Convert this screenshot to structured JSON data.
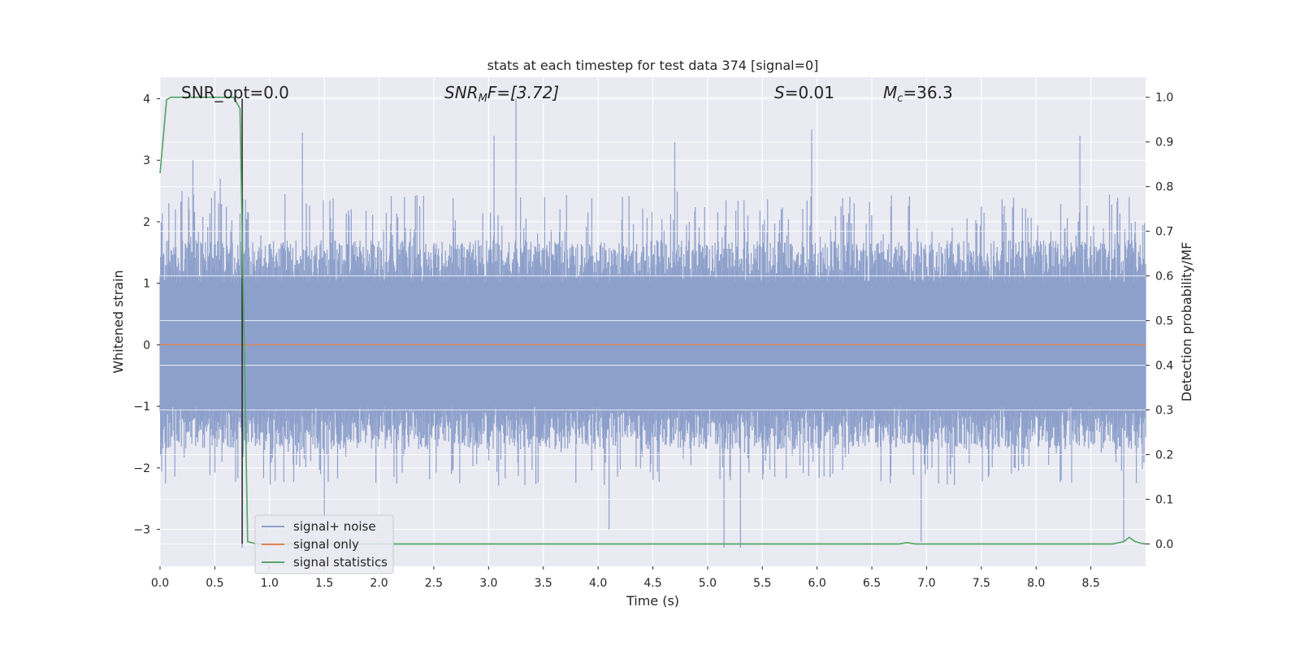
{
  "chart_data": {
    "type": "line",
    "title": "stats at each timestep for test data 374 [signal=0]",
    "xlabel": "Time (s)",
    "ylabel_left": "Whitened strain",
    "ylabel_right": "Detection probability/MF",
    "xlim": [
      0.0,
      9.0
    ],
    "ylim_left": [
      -3.6,
      4.35
    ],
    "ylim_right": [
      -0.05,
      1.045
    ],
    "x_ticks": [
      "0.0",
      "0.5",
      "1.0",
      "1.5",
      "2.0",
      "2.5",
      "3.0",
      "3.5",
      "4.0",
      "4.5",
      "5.0",
      "5.5",
      "6.0",
      "6.5",
      "7.0",
      "7.5",
      "8.0",
      "8.5"
    ],
    "x_tick_values": [
      0,
      0.5,
      1,
      1.5,
      2,
      2.5,
      3,
      3.5,
      4,
      4.5,
      5,
      5.5,
      6,
      6.5,
      7,
      7.5,
      8,
      8.5
    ],
    "y_left_ticks": [
      "−3",
      "−2",
      "−1",
      "0",
      "1",
      "2",
      "3",
      "4"
    ],
    "y_left_tick_values": [
      -3,
      -2,
      -1,
      0,
      1,
      2,
      3,
      4
    ],
    "y_right_ticks": [
      "0.0",
      "0.1",
      "0.2",
      "0.3",
      "0.4",
      "0.5",
      "0.6",
      "0.7",
      "0.8",
      "0.9",
      "1.0"
    ],
    "y_right_tick_values": [
      0,
      0.1,
      0.2,
      0.3,
      0.4,
      0.5,
      0.6,
      0.7,
      0.8,
      0.9,
      1.0
    ],
    "grid": true,
    "legend_position": "lower-left",
    "annotations": {
      "snr_opt": "SNR_opt=0.0",
      "snr_mf_italic": "SNR",
      "snr_mf_sub": "M",
      "snr_mf_rest": "F=[3.72]",
      "s_italic": "S",
      "s_rest": "=0.01",
      "mc_italic": "M",
      "mc_sub": "c",
      "mc_rest": "=36.3"
    },
    "series": [
      {
        "name": "signal+ noise",
        "axis": "left",
        "color": "#8da0cb",
        "envelope": {
          "typical_abs_max": 1.7,
          "notable_peaks": [
            {
              "x": 0.08,
              "y": 2.3
            },
            {
              "x": 0.2,
              "y": 2.5
            },
            {
              "x": 0.3,
              "y": 3.0
            },
            {
              "x": 0.5,
              "y": 2.5
            },
            {
              "x": 0.55,
              "y": 2.7
            },
            {
              "x": 1.3,
              "y": 3.45
            },
            {
              "x": 3.05,
              "y": 3.4
            },
            {
              "x": 3.25,
              "y": 4.0
            },
            {
              "x": 4.7,
              "y": 3.3
            },
            {
              "x": 5.95,
              "y": 3.5
            },
            {
              "x": 8.4,
              "y": 3.4
            },
            {
              "x": 8.85,
              "y": 2.4
            }
          ],
          "notable_troughs": [
            {
              "x": 0.75,
              "y": -3.3
            },
            {
              "x": 1.5,
              "y": -2.8
            },
            {
              "x": 4.1,
              "y": -3.0
            },
            {
              "x": 5.15,
              "y": -3.3
            },
            {
              "x": 5.3,
              "y": -3.3
            },
            {
              "x": 6.95,
              "y": -3.2
            },
            {
              "x": 8.8,
              "y": -3.2
            }
          ]
        }
      },
      {
        "name": "signal only",
        "axis": "left",
        "color": "#dd8452",
        "x": [
          0.0,
          9.0
        ],
        "y": [
          0.0,
          0.0
        ]
      },
      {
        "name": "signal statistics",
        "axis": "right",
        "color": "#55a868",
        "x": [
          0.0,
          0.06,
          0.1,
          0.2,
          0.3,
          0.4,
          0.5,
          0.6,
          0.67,
          0.73,
          0.8,
          0.85,
          0.9,
          1.5,
          2.5,
          3.5,
          4.5,
          5.5,
          6.5,
          6.75,
          6.82,
          6.9,
          7.5,
          8.5,
          8.7,
          8.8,
          8.85,
          8.9,
          8.95,
          9.0
        ],
        "y": [
          0.83,
          0.995,
          1.0,
          1.0,
          1.0,
          1.0,
          1.0,
          1.0,
          1.0,
          0.975,
          0.005,
          0.002,
          0.0,
          0.0,
          0.0,
          0.0,
          0.0,
          0.0,
          0.0,
          0.0,
          0.003,
          0.0,
          0.0,
          0.0,
          0.0,
          0.005,
          0.015,
          0.006,
          0.002,
          0.0
        ]
      }
    ],
    "vertical_marker": {
      "x": 0.75,
      "color": "#262626"
    }
  }
}
